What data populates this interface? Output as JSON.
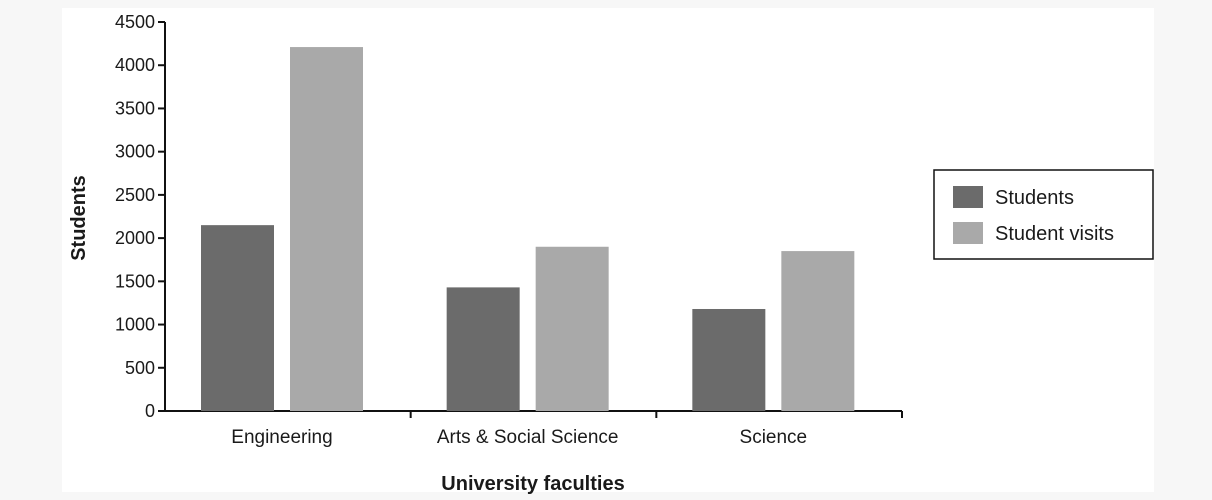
{
  "chart_data": {
    "type": "bar",
    "title": "",
    "xlabel": "University faculties",
    "ylabel": "Students",
    "categories": [
      "Engineering",
      "Arts & Social Science",
      "Science"
    ],
    "series": [
      {
        "name": "Students",
        "values": [
          2150,
          1430,
          1180
        ],
        "color": "#6b6b6b"
      },
      {
        "name": "Student visits",
        "values": [
          4210,
          1900,
          1850
        ],
        "color": "#a9a9a9"
      }
    ],
    "ylim": [
      0,
      4500
    ],
    "yticks": [
      0,
      500,
      1000,
      1500,
      2000,
      2500,
      3000,
      3500,
      4000,
      4500
    ],
    "grid": false,
    "legend_position": "right"
  }
}
